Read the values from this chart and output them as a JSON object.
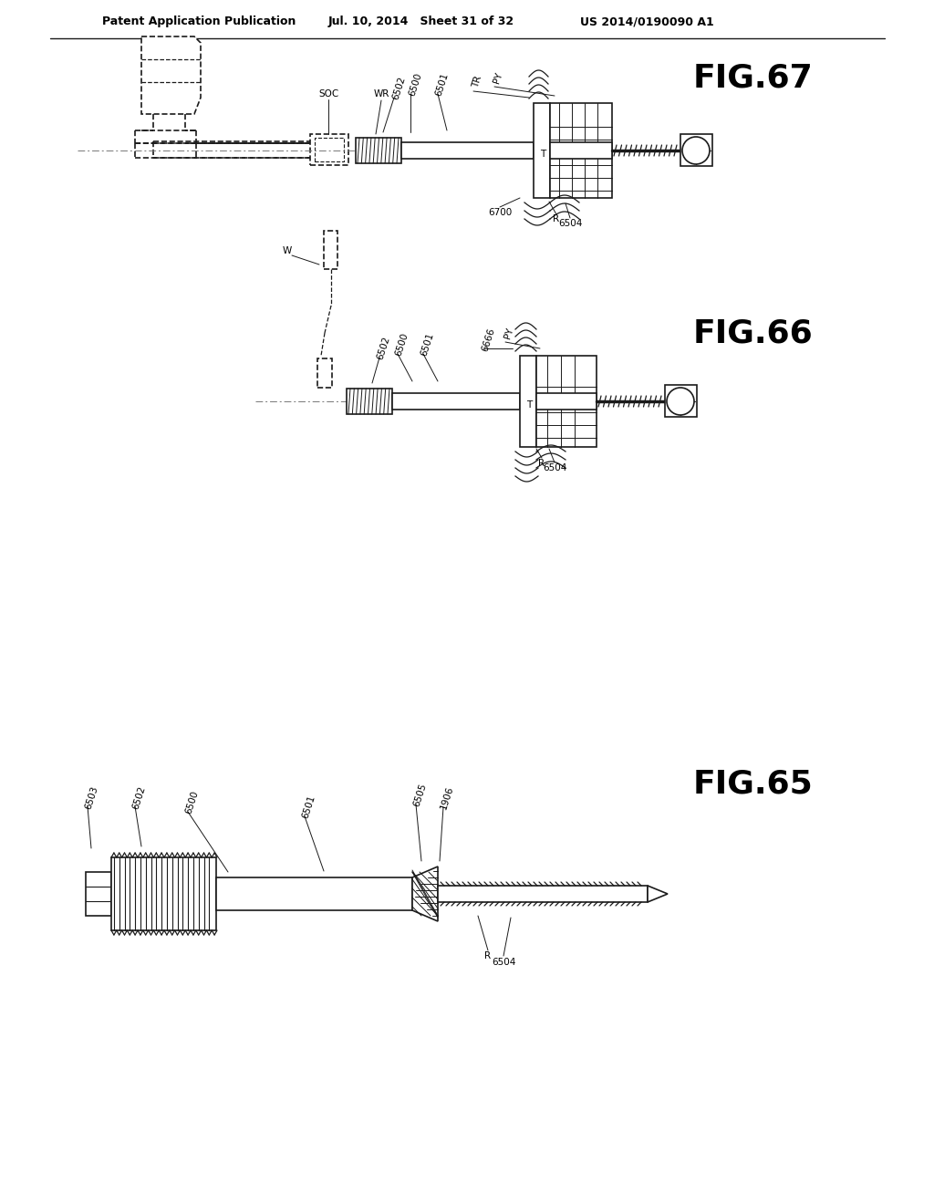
{
  "bg_color": "#ffffff",
  "header_left": "Patent Application Publication",
  "header_mid": "Jul. 10, 2014   Sheet 31 of 32",
  "header_right": "US 2014/0190090 A1",
  "line_color": "#1a1a1a"
}
